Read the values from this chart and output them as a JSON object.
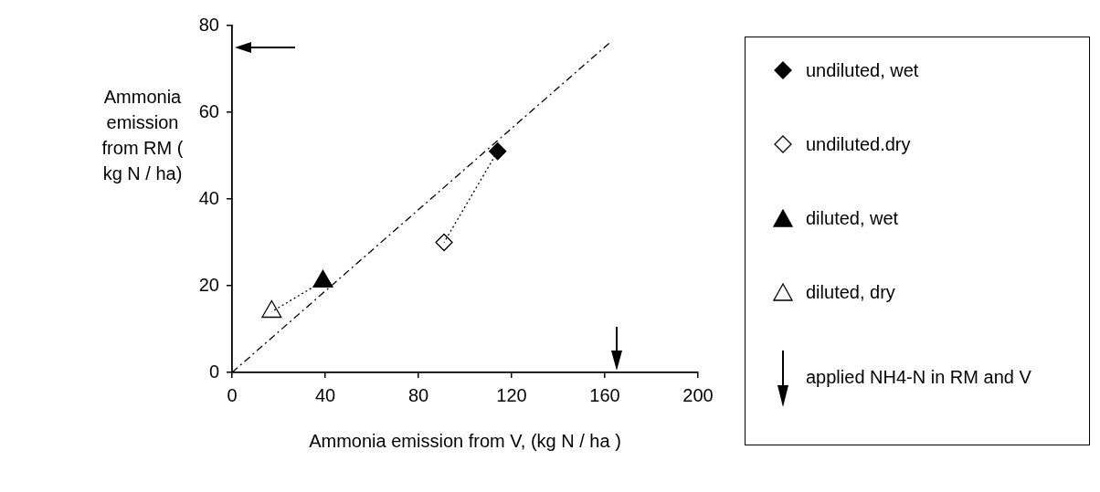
{
  "chart_data": {
    "type": "scatter",
    "xlabel": "Ammonia emission from V, (kg N / ha )",
    "ylabel": "Ammonia emission from RM ( kg N / ha)",
    "xlim": [
      0,
      200
    ],
    "ylim": [
      0,
      80
    ],
    "xticks": [
      0,
      40,
      80,
      120,
      160,
      200
    ],
    "yticks": [
      0,
      20,
      40,
      60,
      80
    ],
    "legend": "right",
    "series": [
      {
        "type": "line",
        "color": "#000000",
        "line_style": "dashed",
        "marker": "none",
        "x": [
          0,
          162
        ],
        "values": [
          0,
          76
        ]
      },
      {
        "type": "line",
        "color": "#000000",
        "line_style": "dotted",
        "marker": "none",
        "x": [
          114,
          91
        ],
        "values": [
          51,
          30
        ]
      },
      {
        "type": "line",
        "color": "#000000",
        "line_style": "dotted",
        "marker": "none",
        "x": [
          39,
          17
        ],
        "values": [
          21,
          14
        ]
      },
      {
        "name": "undiluted, wet",
        "color": "#000000",
        "marker": "diamond",
        "x": [
          114
        ],
        "values": [
          51
        ]
      },
      {
        "name": "undiluted.dry",
        "color": "#ffffff",
        "marker": "diamond",
        "x": [
          91
        ],
        "values": [
          30
        ]
      },
      {
        "name": "diluted, wet",
        "color": "#000000",
        "marker": "triangle",
        "x": [
          39
        ],
        "values": [
          21
        ]
      },
      {
        "name": "diluted, dry",
        "color": "#ffffff",
        "marker": "triangle",
        "x": [
          17
        ],
        "values": [
          14
        ]
      }
    ],
    "ref_lines": [
      {
        "axis": "y",
        "value": 75,
        "label": "applied NH4-N in RM and V"
      },
      {
        "axis": "x",
        "value": 165
      }
    ]
  }
}
